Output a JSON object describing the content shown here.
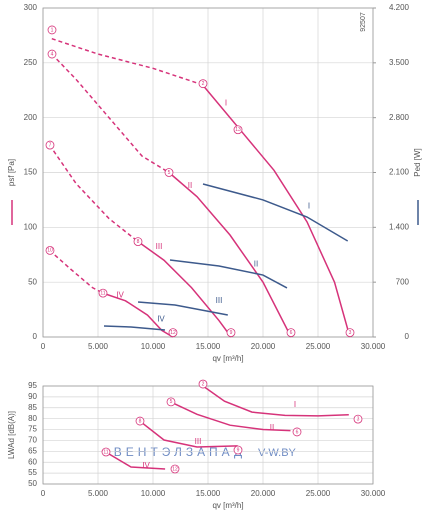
{
  "chart_data": [
    {
      "type": "line",
      "x_label": "qv [m³/h]",
      "y_label": "psf [Pa]",
      "y2_label": "Ped [W]",
      "side_note": "92507",
      "xlim": [
        0,
        30000
      ],
      "xticks": [
        0,
        {
          "value": 5000,
          "label": "5.000"
        },
        {
          "value": 10000,
          "label": "10.000"
        },
        {
          "value": 15000,
          "label": "15.000"
        },
        {
          "value": 20000,
          "label": "20.000"
        },
        {
          "value": 25000,
          "label": "25.000"
        },
        {
          "value": 30000,
          "label": "30.000"
        }
      ],
      "ylim": [
        0,
        300
      ],
      "yticks": [
        0,
        50,
        100,
        150,
        200,
        250,
        300
      ],
      "y2lim": [
        0,
        4200
      ],
      "y2ticks": [
        0,
        700,
        {
          "value": 1400,
          "label": "1.400"
        },
        {
          "value": 2100,
          "label": "2.100"
        },
        {
          "value": 2800,
          "label": "2.800"
        },
        {
          "value": 3500,
          "label": "3.500"
        },
        {
          "value": 4200,
          "label": "4.200"
        }
      ],
      "grid": true,
      "series": [
        {
          "color": "#d6337a",
          "style": "dashed",
          "x": [
            800,
            5000,
            10000,
            14500
          ],
          "values": [
            272,
            258,
            245,
            230
          ]
        },
        {
          "color": "#d6337a",
          "style": "solid",
          "x": [
            14500,
            18000,
            21000,
            24000,
            26500,
            27900
          ],
          "values": [
            230,
            188,
            152,
            105,
            50,
            0
          ]
        },
        {
          "color": "#d6337a",
          "style": "dashed",
          "x": [
            800,
            3000,
            6000,
            9000,
            11450
          ],
          "values": [
            258,
            235,
            200,
            165,
            150
          ]
        },
        {
          "color": "#d6337a",
          "style": "solid",
          "x": [
            11450,
            14000,
            17000,
            20000,
            22550
          ],
          "values": [
            150,
            128,
            93,
            50,
            0
          ]
        },
        {
          "color": "#d6337a",
          "style": "dashed",
          "x": [
            600,
            3000,
            6000,
            8640
          ],
          "values": [
            175,
            140,
            108,
            87
          ]
        },
        {
          "color": "#d6337a",
          "style": "solid",
          "x": [
            8640,
            11000,
            13500,
            16000,
            17100
          ],
          "values": [
            87,
            70,
            45,
            15,
            0
          ]
        },
        {
          "color": "#d6337a",
          "style": "dashed",
          "x": [
            600,
            2500,
            4500,
            5450
          ],
          "values": [
            79,
            62,
            45,
            40
          ]
        },
        {
          "color": "#d6337a",
          "style": "solid",
          "x": [
            5450,
            7500,
            9500,
            10800,
            11800
          ],
          "values": [
            40,
            33,
            20,
            6,
            0
          ]
        },
        {
          "color": "#3d5a8c",
          "style": "solid",
          "axis": "y2",
          "x": [
            14545,
            20000,
            24000,
            27700
          ],
          "values": [
            1953,
            1750,
            1532,
            1226
          ]
        },
        {
          "color": "#3d5a8c",
          "style": "solid",
          "axis": "y2",
          "x": [
            11545,
            16000,
            20000,
            22180
          ],
          "values": [
            983,
            906,
            791,
            626
          ]
        },
        {
          "color": "#3d5a8c",
          "style": "solid",
          "axis": "y2",
          "x": [
            8640,
            12000,
            16800
          ],
          "values": [
            447,
            408,
            281
          ]
        },
        {
          "color": "#3d5a8c",
          "style": "solid",
          "axis": "y2",
          "x": [
            5545,
            8000,
            11090
          ],
          "values": [
            140,
            128,
            89
          ]
        }
      ],
      "annotations": [
        {
          "text": "1",
          "x": 818,
          "y": 280,
          "circled": true
        },
        {
          "text": "4",
          "x": 818,
          "y": 258,
          "circled": true
        },
        {
          "text": "7",
          "x": 636,
          "y": 175,
          "circled": true
        },
        {
          "text": "10",
          "x": 636,
          "y": 79,
          "circled": true
        },
        {
          "text": "2",
          "x": 14545,
          "y": 231,
          "circled": true
        },
        {
          "text": "13",
          "x": 17727,
          "y": 189,
          "circled": true
        },
        {
          "text": "5",
          "x": 11455,
          "y": 150,
          "circled": true
        },
        {
          "text": "8",
          "x": 8636,
          "y": 87,
          "circled": true
        },
        {
          "text": "11",
          "x": 5455,
          "y": 40,
          "circled": true
        },
        {
          "text": "3",
          "x": 27909,
          "y": 4,
          "circled": true
        },
        {
          "text": "6",
          "x": 22545,
          "y": 4,
          "circled": true
        },
        {
          "text": "9",
          "x": 17091,
          "y": 4,
          "circled": true
        },
        {
          "text": "12",
          "x": 11818,
          "y": 4,
          "circled": true
        },
        {
          "text": "I",
          "x": 16636,
          "y": 213,
          "color": "#d6337a"
        },
        {
          "text": "II",
          "x": 13364,
          "y": 138,
          "color": "#d6337a"
        },
        {
          "text": "III",
          "x": 10545,
          "y": 82,
          "color": "#d6337a"
        },
        {
          "text": "IV",
          "x": 7000,
          "y": 38,
          "color": "#d6337a"
        },
        {
          "text": "I",
          "x": 24182,
          "y": 119,
          "color": "#3d5a8c"
        },
        {
          "text": "II",
          "x": 19364,
          "y": 66,
          "color": "#3d5a8c"
        },
        {
          "text": "III",
          "x": 16000,
          "y": 33,
          "color": "#3d5a8c"
        },
        {
          "text": "IV",
          "x": 10727,
          "y": 16,
          "color": "#3d5a8c"
        }
      ]
    },
    {
      "type": "line",
      "x_label": "qv [m³/h]",
      "y_label": "LWAd [dB(A)]",
      "xlim": [
        0,
        30000
      ],
      "xticks": [
        0,
        {
          "value": 5000,
          "label": "5.000"
        },
        {
          "value": 10000,
          "label": "10.000"
        },
        {
          "value": 15000,
          "label": "15.000"
        },
        {
          "value": 20000,
          "label": "20.000"
        },
        {
          "value": 25000,
          "label": "25.000"
        },
        {
          "value": 30000,
          "label": "30.000"
        }
      ],
      "ylim": [
        50,
        95
      ],
      "yticks": [
        50,
        55,
        60,
        65,
        70,
        75,
        80,
        85,
        90,
        95
      ],
      "grid": true,
      "series": [
        {
          "color": "#d6337a",
          "style": "solid",
          "x": [
            14545,
            16500,
            19000,
            22000,
            25000,
            27800
          ],
          "values": [
            95,
            88,
            83,
            81.5,
            81.3,
            81.8
          ]
        },
        {
          "color": "#d6337a",
          "style": "solid",
          "x": [
            11600,
            14000,
            17000,
            20000,
            22500
          ],
          "values": [
            87.7,
            82,
            77,
            75,
            74.5
          ]
        },
        {
          "color": "#d6337a",
          "style": "solid",
          "x": [
            8800,
            11000,
            14000,
            17700
          ],
          "values": [
            78.9,
            70.2,
            67,
            67.5
          ]
        },
        {
          "color": "#d6337a",
          "style": "solid",
          "x": [
            5700,
            8000,
            11100
          ],
          "values": [
            64.7,
            57.8,
            56.9
          ]
        }
      ],
      "annotations": [
        {
          "text": "2",
          "x": 14545,
          "y": 95.9,
          "circled": true
        },
        {
          "text": "3",
          "x": 28636,
          "y": 79.8,
          "circled": true
        },
        {
          "text": "5",
          "x": 11636,
          "y": 87.7,
          "circled": true
        },
        {
          "text": "6",
          "x": 23091,
          "y": 73.9,
          "circled": true
        },
        {
          "text": "8",
          "x": 8818,
          "y": 78.9,
          "circled": true
        },
        {
          "text": "9",
          "x": 17727,
          "y": 65.6,
          "circled": true
        },
        {
          "text": "11",
          "x": 5727,
          "y": 64.7,
          "circled": true
        },
        {
          "text": "12",
          "x": 12000,
          "y": 56.9,
          "circled": true
        },
        {
          "text": "I",
          "x": 22909,
          "y": 86.3,
          "color": "#d6337a"
        },
        {
          "text": "II",
          "x": 20818,
          "y": 75.7,
          "color": "#d6337a"
        },
        {
          "text": "III",
          "x": 14091,
          "y": 69.3,
          "color": "#d6337a"
        },
        {
          "text": "IV",
          "x": 9364,
          "y": 58.3,
          "color": "#d6337a"
        }
      ]
    }
  ],
  "watermark": [
    "ВЕНТЭЛЗАПАД",
    "V-W.BY"
  ]
}
